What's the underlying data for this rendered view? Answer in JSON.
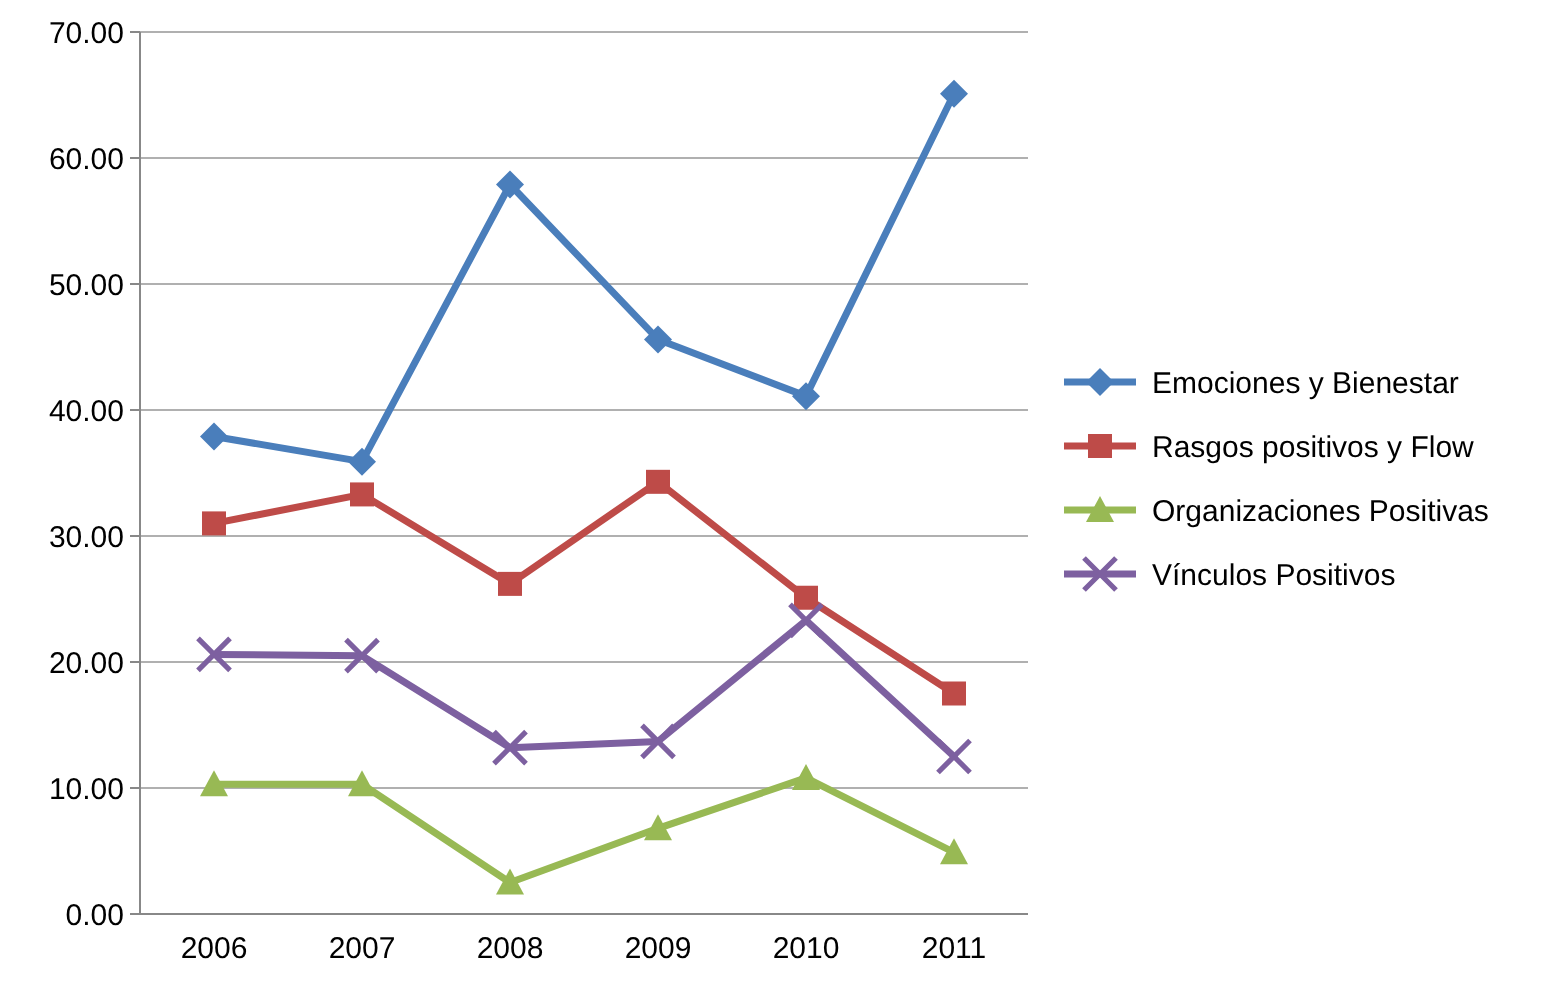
{
  "chart_data": {
    "type": "line",
    "categories": [
      "2006",
      "2007",
      "2008",
      "2009",
      "2010",
      "2011"
    ],
    "series": [
      {
        "name": "Emociones y Bienestar",
        "color": "#4a7ebb",
        "marker": "diamond",
        "values": [
          37.9,
          35.9,
          57.9,
          45.6,
          41.1,
          65.1
        ]
      },
      {
        "name": "Rasgos positivos y Flow",
        "color": "#be4b48",
        "marker": "square",
        "values": [
          31.0,
          33.3,
          26.2,
          34.3,
          25.1,
          17.5
        ]
      },
      {
        "name": "Organizaciones Positivas",
        "color": "#98b954",
        "marker": "triangle",
        "values": [
          10.3,
          10.3,
          2.5,
          6.8,
          10.8,
          4.9
        ]
      },
      {
        "name": "Vínculos Positivos",
        "color": "#7d60a0",
        "marker": "cross",
        "values": [
          20.6,
          20.5,
          13.2,
          13.7,
          23.3,
          12.5
        ]
      }
    ],
    "ylim": [
      0,
      70
    ],
    "yticks": [
      {
        "value": 0,
        "label": "0.00"
      },
      {
        "value": 10,
        "label": "10.00"
      },
      {
        "value": 20,
        "label": "20.00"
      },
      {
        "value": 30,
        "label": "30.00"
      },
      {
        "value": 40,
        "label": "40.00"
      },
      {
        "value": 50,
        "label": "50.00"
      },
      {
        "value": 60,
        "label": "60.00"
      },
      {
        "value": 70,
        "label": "70.00"
      }
    ],
    "grid": "y",
    "legend": "right",
    "line_style": "solid"
  }
}
